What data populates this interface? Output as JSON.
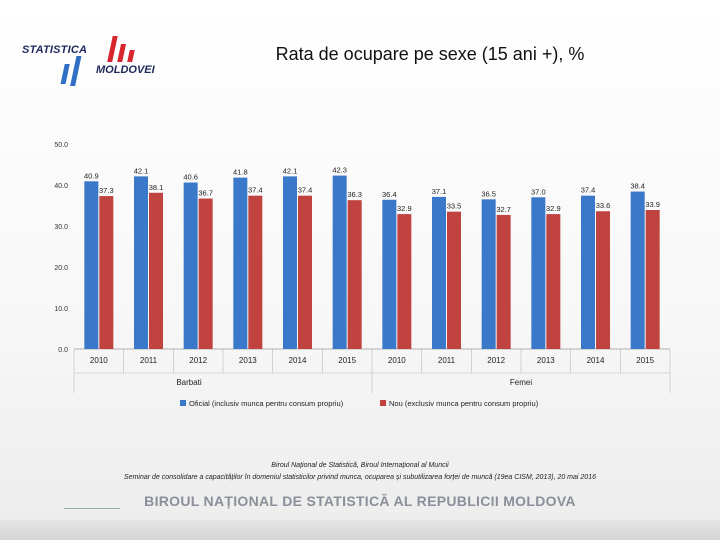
{
  "logo": {
    "line1": "STATISTICA",
    "line2": "MOLDOVEI",
    "colors": {
      "navy": "#1f2a5c",
      "red": "#d8262f",
      "blue": "#2f6fc4"
    }
  },
  "slide": {
    "title": "Rata de ocupare pe sexe (15 ani +), %",
    "source_line1": "Biroul Național de Statistică, Biroul Internațional al Muncii",
    "source_line2": "Seminar de consolidare a capacităților în domeniul statisticilor privind munca, ocuparea și subutilizarea forței de muncă (19ea CISM, 2013), 20 mai 2016",
    "footer": "BIROUL NAȚIONAL DE STATISTICĂ AL REPUBLICII MOLDOVA"
  },
  "chart_data": {
    "type": "bar",
    "title": "Rata de ocupare pe sexe (15 ani +), %",
    "xlabel": "",
    "ylabel": "",
    "ylim": [
      0,
      50
    ],
    "yticks": [
      "0.0",
      "10.0",
      "20.0",
      "30.0",
      "40.0",
      "50.0"
    ],
    "ytick_values": [
      0,
      10,
      20,
      30,
      40,
      50
    ],
    "grid": false,
    "legend_position": "bottom",
    "categories": [
      "2010",
      "2011",
      "2012",
      "2013",
      "2014",
      "2015",
      "2010",
      "2011",
      "2012",
      "2013",
      "2014",
      "2015"
    ],
    "groups": [
      {
        "label": "Barbati",
        "count": 6
      },
      {
        "label": "Femei",
        "count": 6
      }
    ],
    "series": [
      {
        "name": "Oficial (inclusiv munca pentru consum propriu)",
        "color": "#3a78c9",
        "values": [
          40.9,
          42.1,
          40.6,
          41.8,
          42.1,
          42.3,
          36.4,
          37.1,
          36.5,
          37.0,
          37.4,
          38.4
        ],
        "labels": [
          "40.9",
          "42.1",
          "40.6",
          "41.8",
          "42.1",
          "42.3",
          "36.4",
          "37.1",
          "36.5",
          "37.0",
          "37.4",
          "38.4"
        ]
      },
      {
        "name": "Nou (exclusiv munca pentru consum propriu)",
        "color": "#c0433f",
        "values": [
          37.3,
          38.1,
          36.7,
          37.4,
          37.4,
          36.3,
          32.9,
          33.5,
          32.7,
          32.9,
          33.6,
          33.9
        ],
        "labels": [
          "37.3",
          "38.1",
          "36.7",
          "37.4",
          "37.4",
          "36.3",
          "32.9",
          "33.5",
          "32.7",
          "32.9",
          "33.6",
          "33.9"
        ]
      }
    ]
  }
}
